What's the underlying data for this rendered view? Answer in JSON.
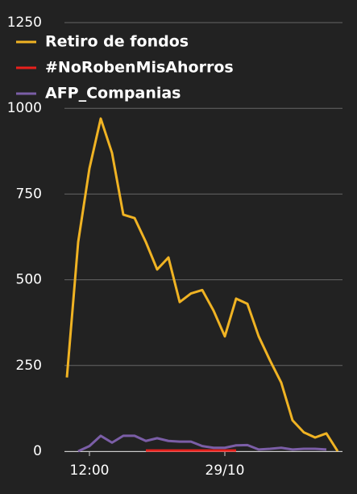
{
  "chart_data": {
    "type": "line",
    "categories": [
      null,
      null,
      "12:00",
      null,
      null,
      null,
      null,
      null,
      null,
      null,
      null,
      null,
      null,
      null,
      "29/10",
      null,
      null,
      null,
      null,
      null,
      null,
      null,
      null,
      null,
      null
    ],
    "series": [
      {
        "name": "Retiro de fondos",
        "color": "#f0b323",
        "values": [
          215,
          610,
          825,
          970,
          870,
          690,
          680,
          610,
          530,
          565,
          435,
          460,
          470,
          410,
          335,
          445,
          430,
          335,
          265,
          200,
          90,
          55,
          40,
          52,
          0
        ]
      },
      {
        "name": "#NoRobenMisAhorros",
        "color": "#e8201c",
        "values": [
          null,
          null,
          null,
          null,
          null,
          null,
          null,
          2,
          2,
          2,
          2,
          2,
          2,
          2,
          2,
          2,
          null,
          null,
          null,
          null,
          null,
          null,
          null,
          null,
          null
        ]
      },
      {
        "name": "AFP_Companias",
        "color": "#7b5ea7",
        "values": [
          null,
          0,
          15,
          45,
          25,
          45,
          45,
          30,
          38,
          30,
          28,
          28,
          15,
          10,
          10,
          17,
          18,
          5,
          7,
          10,
          5,
          7,
          7,
          5,
          null
        ]
      }
    ],
    "ylim": [
      0,
      1250
    ],
    "yticks": [
      0,
      250,
      500,
      750,
      1000,
      1250
    ],
    "grid": true,
    "legend": "top-left"
  }
}
